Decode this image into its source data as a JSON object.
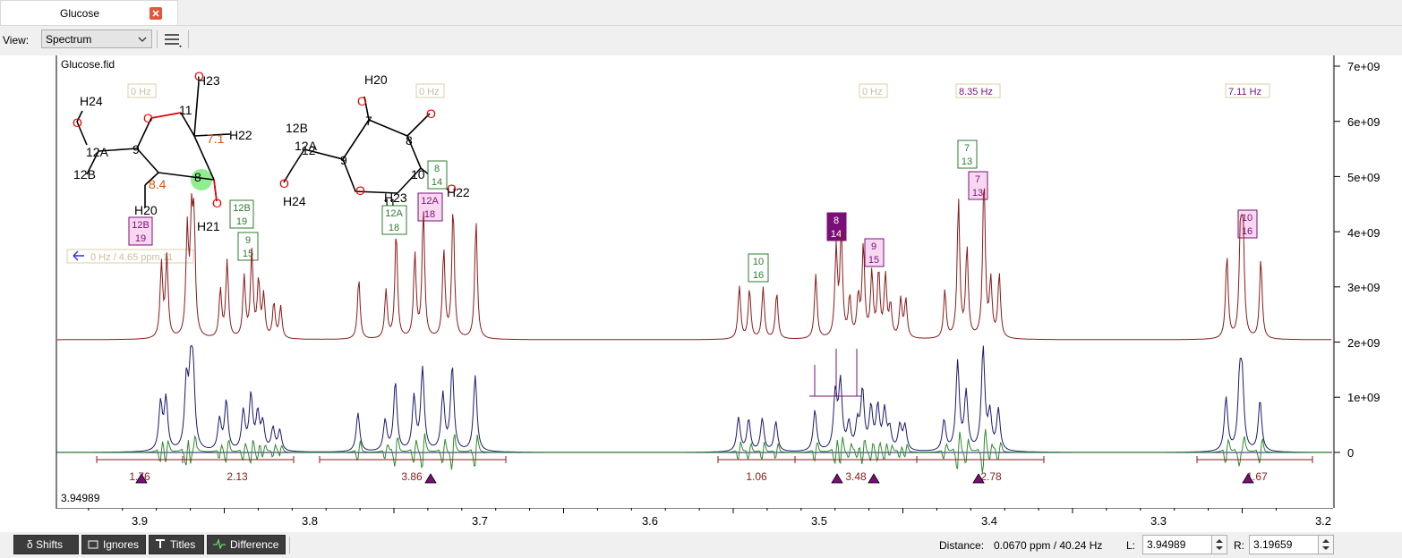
{
  "tab": {
    "title": "Glucose"
  },
  "toolbar": {
    "view_label": "View:",
    "view_value": "Spectrum"
  },
  "plot": {
    "file_label": "Glucose.fid",
    "cursor_value": "3.94989",
    "nav_label": "0 Hz / 4.65 ppm 11",
    "hz_labels": [
      "0 Hz",
      "0 Hz",
      "0 Hz",
      "8.35 Hz",
      "7.11 Hz"
    ],
    "x_ticks": [
      "3.9",
      "3.8",
      "3.7",
      "3.6",
      "3.5",
      "3.4",
      "3.3",
      "3.2"
    ],
    "y_ticks": [
      "7e+09",
      "6e+09",
      "5e+09",
      "4e+09",
      "3e+09",
      "2e+09",
      "1e+09",
      "0"
    ],
    "integrals": [
      "1.76",
      "2.13",
      "3.86",
      "1.06",
      "3.48",
      "2.78",
      "1.67"
    ],
    "atom_boxes_green": [
      "12B\n19",
      "9\n15",
      "12A\n18",
      "8\n14",
      "10\n16",
      "7\n13"
    ],
    "atom_boxes_pink": [
      "12B\n19",
      "12A\n18",
      "9\n15",
      "7\n13",
      "10\n16"
    ],
    "atom_box_selected": "8\n14",
    "mol1": {
      "labels": [
        "H24",
        "H23",
        "11",
        "7.1",
        "H22",
        "12A",
        "9",
        "12B",
        "8.4",
        "8",
        "H20",
        "H21"
      ]
    },
    "mol2": {
      "labels": [
        "H20",
        "7",
        "8",
        "12B",
        "12A",
        "12",
        "9",
        "10",
        "H24",
        "H23",
        "11",
        "H22"
      ]
    }
  },
  "colors": {
    "spectrum_top": "#8b1a1a",
    "spectrum_blue": "#1a1a6e",
    "spectrum_green": "#2e8b2e",
    "accent_purple": "#7a0f7a"
  },
  "bottom": {
    "shifts_label": "δ Shifts",
    "ignores_label": "Ignores",
    "titles_label": "Titles",
    "difference_label": "Difference",
    "distance_label": "Distance:",
    "distance_value": "0.0670 ppm / 40.24 Hz",
    "l_label": "L:",
    "l_value": "3.94989",
    "r_label": "R:",
    "r_value": "3.19659"
  }
}
